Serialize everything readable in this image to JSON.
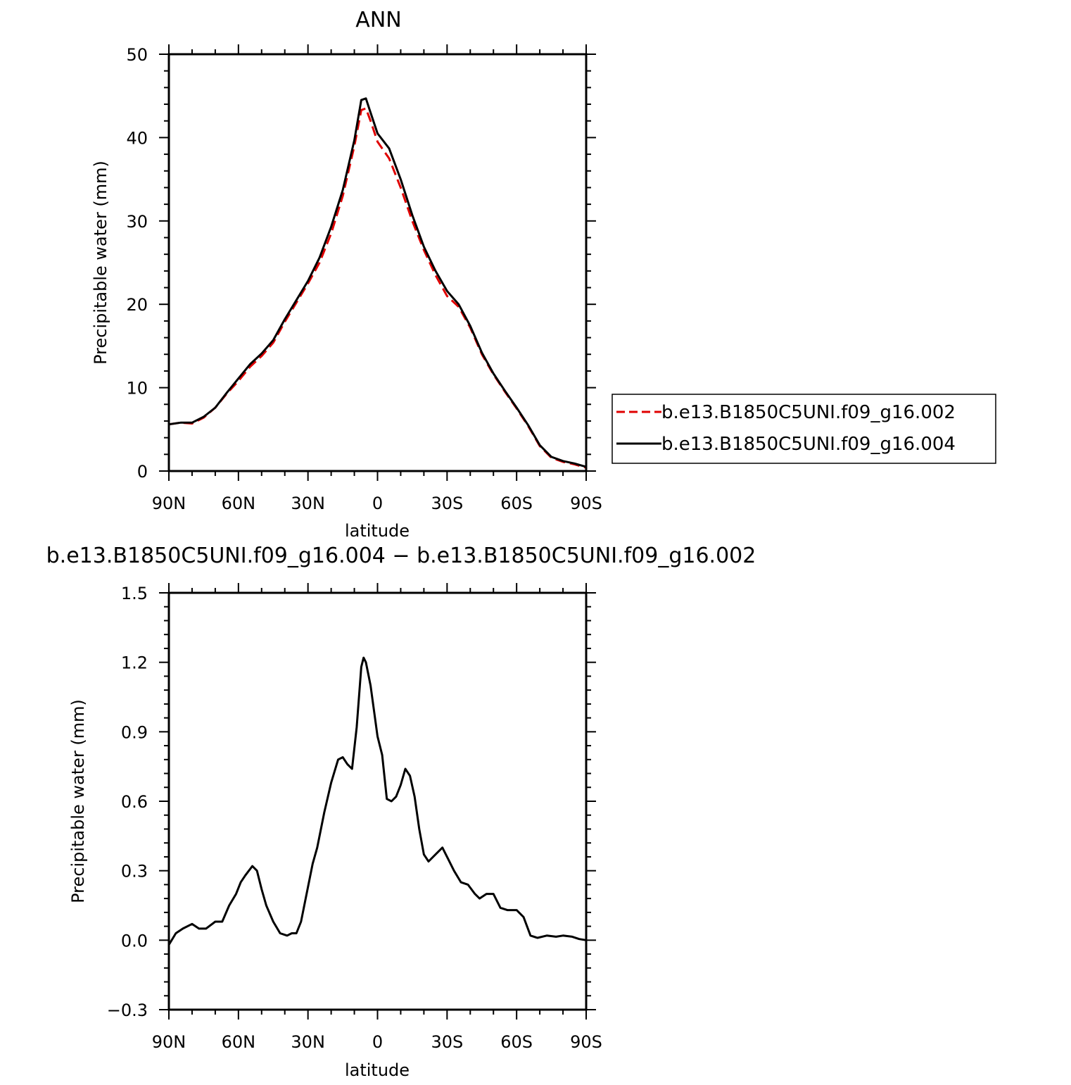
{
  "chart_data": [
    {
      "type": "line",
      "title": "ANN",
      "xlabel": "latitude",
      "ylabel": "Precipitable water (mm)",
      "xlim": [
        90,
        -90
      ],
      "ylim": [
        0,
        50
      ],
      "yticks": [
        0,
        10,
        20,
        30,
        40,
        50
      ],
      "xticks": [
        {
          "value": 90,
          "label": "90N"
        },
        {
          "value": 60,
          "label": "60N"
        },
        {
          "value": 30,
          "label": "30N"
        },
        {
          "value": 0,
          "label": "0"
        },
        {
          "value": -30,
          "label": "30S"
        },
        {
          "value": -60,
          "label": "60S"
        },
        {
          "value": -90,
          "label": "90S"
        }
      ],
      "grid": false,
      "legend": "right",
      "series": [
        {
          "name": "b.e13.B1850C5UNI.f09_g16.002",
          "color": "#e00000",
          "dash": "dashed",
          "x": [
            90,
            85,
            80,
            75,
            70,
            65,
            60,
            55,
            50,
            45,
            40,
            35,
            30,
            25,
            20,
            15,
            10,
            7,
            5,
            3,
            0,
            -5,
            -10,
            -15,
            -20,
            -25,
            -30,
            -35,
            -40,
            -45,
            -50,
            -55,
            -60,
            -65,
            -70,
            -75,
            -80,
            -85,
            -90
          ],
          "y": [
            5.6,
            5.8,
            5.7,
            6.4,
            7.6,
            9.3,
            10.8,
            12.5,
            13.8,
            15.4,
            17.9,
            20.2,
            22.5,
            25.0,
            28.5,
            33.0,
            39.0,
            43.3,
            43.5,
            42.0,
            39.5,
            37.5,
            34.0,
            30.0,
            26.5,
            23.5,
            21.0,
            19.7,
            17.2,
            14.0,
            11.6,
            9.5,
            7.5,
            5.4,
            3.0,
            1.6,
            1.1,
            0.8,
            0.4
          ]
        },
        {
          "name": "b.e13.B1850C5UNI.f09_g16.004",
          "color": "#000000",
          "dash": "solid",
          "x": [
            90,
            85,
            80,
            75,
            70,
            65,
            60,
            55,
            50,
            45,
            40,
            35,
            30,
            25,
            20,
            15,
            10,
            7,
            5,
            3,
            0,
            -5,
            -10,
            -15,
            -20,
            -25,
            -30,
            -35,
            -40,
            -45,
            -50,
            -55,
            -60,
            -65,
            -70,
            -75,
            -80,
            -85,
            -90
          ],
          "y": [
            5.6,
            5.8,
            5.8,
            6.5,
            7.6,
            9.4,
            11.1,
            12.8,
            14.1,
            15.7,
            18.2,
            20.5,
            22.8,
            25.6,
            29.3,
            33.7,
            39.7,
            44.5,
            44.7,
            43.0,
            40.5,
            38.7,
            35.0,
            30.7,
            26.9,
            24.0,
            21.6,
            20.0,
            17.4,
            14.2,
            11.7,
            9.6,
            7.6,
            5.5,
            3.1,
            1.7,
            1.2,
            0.9,
            0.5
          ]
        }
      ]
    },
    {
      "type": "line",
      "title": "b.e13.B1850C5UNI.f09_g16.004 − b.e13.B1850C5UNI.f09_g16.002",
      "xlabel": "latitude",
      "ylabel": "Precipitable water (mm)",
      "xlim": [
        90,
        -90
      ],
      "ylim": [
        -0.3,
        1.5
      ],
      "yticks": [
        "−0.3",
        "0.0",
        "0.3",
        "0.6",
        "0.9",
        "1.2",
        "1.5"
      ],
      "ytick_values": [
        -0.3,
        0.0,
        0.3,
        0.6,
        0.9,
        1.2,
        1.5
      ],
      "xticks": [
        {
          "value": 90,
          "label": "90N"
        },
        {
          "value": 60,
          "label": "60N"
        },
        {
          "value": 30,
          "label": "30N"
        },
        {
          "value": 0,
          "label": "0"
        },
        {
          "value": -30,
          "label": "30S"
        },
        {
          "value": -60,
          "label": "60S"
        },
        {
          "value": -90,
          "label": "90S"
        }
      ],
      "grid": false,
      "series": [
        {
          "color": "#000000",
          "dash": "solid",
          "x": [
            90,
            87,
            84,
            80,
            77,
            74,
            70,
            67,
            64,
            61,
            59,
            57,
            54,
            52,
            50,
            48,
            45,
            42,
            39,
            37,
            35,
            33,
            31,
            28,
            26,
            23,
            20,
            17,
            15,
            13,
            11,
            9,
            7,
            6,
            5,
            3,
            0,
            -2,
            -4,
            -6,
            -8,
            -10,
            -12,
            -14,
            -16,
            -18,
            -20,
            -22,
            -25,
            -28,
            -30,
            -33,
            -36,
            -39,
            -42,
            -44,
            -47,
            -50,
            -53,
            -56,
            -60,
            -63,
            -66,
            -69,
            -73,
            -77,
            -80,
            -84,
            -87,
            -90
          ],
          "y": [
            -0.02,
            0.03,
            0.05,
            0.07,
            0.05,
            0.05,
            0.08,
            0.08,
            0.15,
            0.2,
            0.25,
            0.28,
            0.32,
            0.3,
            0.22,
            0.15,
            0.08,
            0.03,
            0.02,
            0.03,
            0.03,
            0.08,
            0.18,
            0.33,
            0.4,
            0.55,
            0.68,
            0.78,
            0.79,
            0.76,
            0.74,
            0.92,
            1.18,
            1.22,
            1.2,
            1.1,
            0.88,
            0.8,
            0.61,
            0.6,
            0.62,
            0.67,
            0.74,
            0.71,
            0.62,
            0.48,
            0.37,
            0.34,
            0.37,
            0.4,
            0.36,
            0.3,
            0.25,
            0.24,
            0.2,
            0.18,
            0.2,
            0.2,
            0.14,
            0.13,
            0.13,
            0.1,
            0.02,
            0.01,
            0.02,
            0.015,
            0.02,
            0.015,
            0.005,
            0.0
          ]
        }
      ]
    }
  ]
}
